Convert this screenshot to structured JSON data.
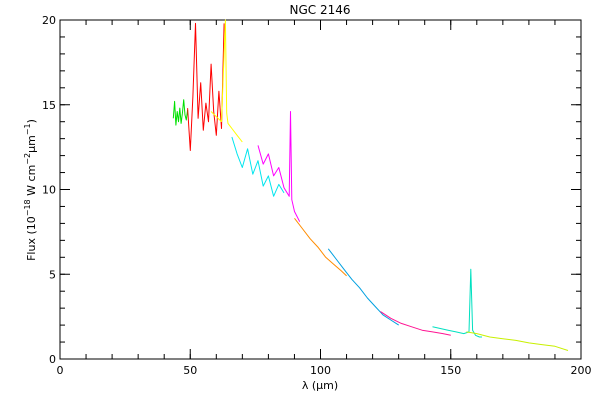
{
  "chart_data": {
    "type": "line",
    "title": "NGC 2146",
    "xlabel": "λ (μm)",
    "ylabel": {
      "prefix": "Flux (10",
      "exp1": "−18",
      "mid": " W cm",
      "exp2": "−2",
      "mid2": "μm",
      "exp3": "−1",
      "suffix": ")"
    },
    "xlim": [
      0,
      200
    ],
    "ylim": [
      0,
      20
    ],
    "xticks": [
      0,
      50,
      100,
      150,
      200
    ],
    "yticks": [
      0,
      5,
      10,
      15,
      20
    ],
    "x_minor_step": 10,
    "y_minor_step": 1,
    "grid": false,
    "series": [
      {
        "color": "#00e000",
        "x": [
          43.5,
          44,
          44.5,
          45,
          45.5,
          46,
          46.5,
          47,
          47.5,
          48,
          48.5,
          49
        ],
        "y": [
          14.2,
          15.2,
          13.8,
          14.6,
          14.0,
          14.8,
          13.9,
          14.5,
          15.3,
          14.4,
          14.1,
          14.7
        ]
      },
      {
        "color": "#ff0000",
        "x": [
          49,
          50,
          51,
          52,
          53,
          54,
          55,
          56,
          57,
          58,
          59,
          60,
          61,
          62,
          63
        ],
        "y": [
          14.8,
          12.3,
          15.5,
          19.8,
          14.2,
          16.3,
          13.5,
          15.1,
          14.0,
          17.4,
          14.6,
          13.2,
          15.8,
          13.6,
          19.8
        ]
      },
      {
        "color": "#ffff00",
        "x": [
          58,
          60,
          62,
          63.5,
          64,
          64.5,
          66,
          68,
          70
        ],
        "y": [
          14.6,
          14.3,
          14.0,
          20.0,
          14.5,
          13.9,
          13.6,
          13.2,
          12.8
        ]
      },
      {
        "color": "#00e5ee",
        "x": [
          66,
          68,
          70,
          72,
          74,
          76,
          78,
          80,
          82,
          84,
          86
        ],
        "y": [
          13.1,
          12.1,
          11.3,
          12.4,
          10.9,
          11.7,
          10.2,
          10.8,
          9.6,
          10.3,
          9.8
        ]
      },
      {
        "color": "#ff00ff",
        "x": [
          76,
          78,
          80,
          82,
          84,
          86,
          88,
          88.5,
          89,
          90,
          92
        ],
        "y": [
          12.6,
          11.5,
          12.1,
          10.8,
          11.3,
          10.1,
          9.6,
          14.6,
          9.4,
          8.7,
          8.1
        ]
      },
      {
        "color": "#ff8c00",
        "x": [
          90,
          93,
          96,
          99,
          102,
          105,
          108,
          110
        ],
        "y": [
          8.3,
          7.7,
          7.1,
          6.6,
          6.0,
          5.6,
          5.2,
          4.9
        ]
      },
      {
        "color": "#00a0e0",
        "x": [
          103,
          106,
          109,
          112,
          115,
          118,
          121,
          124,
          127,
          130
        ],
        "y": [
          6.5,
          5.9,
          5.3,
          4.7,
          4.2,
          3.6,
          3.1,
          2.6,
          2.3,
          2.0
        ]
      },
      {
        "color": "#ff1493",
        "x": [
          123,
          127,
          131,
          135,
          139,
          143,
          147,
          150
        ],
        "y": [
          2.8,
          2.4,
          2.1,
          1.9,
          1.7,
          1.6,
          1.5,
          1.4
        ]
      },
      {
        "color": "#00e0c0",
        "x": [
          143,
          146,
          149,
          152,
          155,
          157,
          157.7,
          158.4,
          159.5,
          161,
          162
        ],
        "y": [
          1.9,
          1.8,
          1.7,
          1.6,
          1.5,
          1.6,
          5.3,
          1.7,
          1.4,
          1.3,
          1.3
        ]
      },
      {
        "color": "#c8f000",
        "x": [
          156,
          160,
          165,
          170,
          175,
          180,
          185,
          190,
          195
        ],
        "y": [
          1.6,
          1.5,
          1.3,
          1.2,
          1.1,
          0.95,
          0.85,
          0.75,
          0.5
        ]
      }
    ]
  }
}
